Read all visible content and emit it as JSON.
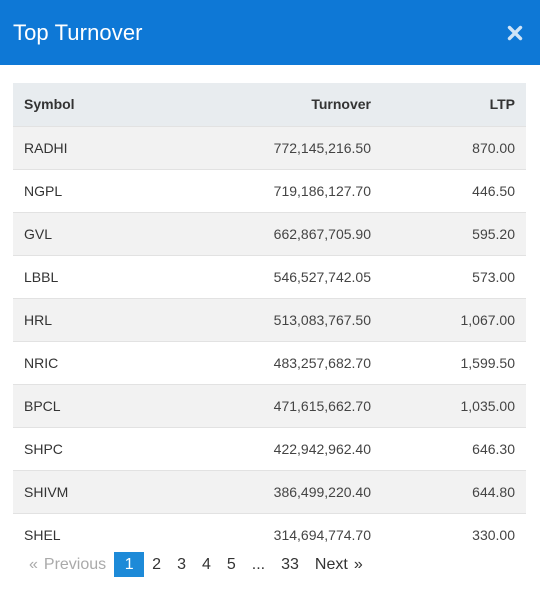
{
  "header": {
    "title": "Top Turnover",
    "close_icon": "close-icon"
  },
  "table": {
    "columns": [
      "Symbol",
      "Turnover",
      "LTP"
    ],
    "rows": [
      {
        "symbol": "RADHI",
        "turnover": "772,145,216.50",
        "ltp": "870.00"
      },
      {
        "symbol": "NGPL",
        "turnover": "719,186,127.70",
        "ltp": "446.50"
      },
      {
        "symbol": "GVL",
        "turnover": "662,867,705.90",
        "ltp": "595.20"
      },
      {
        "symbol": "LBBL",
        "turnover": "546,527,742.05",
        "ltp": "573.00"
      },
      {
        "symbol": "HRL",
        "turnover": "513,083,767.50",
        "ltp": "1,067.00"
      },
      {
        "symbol": "NRIC",
        "turnover": "483,257,682.70",
        "ltp": "1,599.50"
      },
      {
        "symbol": "BPCL",
        "turnover": "471,615,662.70",
        "ltp": "1,035.00"
      },
      {
        "symbol": "SHPC",
        "turnover": "422,942,962.40",
        "ltp": "646.30"
      },
      {
        "symbol": "SHIVM",
        "turnover": "386,499,220.40",
        "ltp": "644.80"
      },
      {
        "symbol": "SHEL",
        "turnover": "314,694,774.70",
        "ltp": "330.00"
      }
    ]
  },
  "pagination": {
    "prev_arrow": "«",
    "prev_label": "Previous",
    "pages": [
      "1",
      "2",
      "3",
      "4",
      "5"
    ],
    "ellipsis": "...",
    "last_page": "33",
    "next_label": "Next",
    "next_arrow": "»",
    "current": "1"
  },
  "colors": {
    "header_bg": "#0e78d6",
    "active_page": "#1d8ad8"
  }
}
